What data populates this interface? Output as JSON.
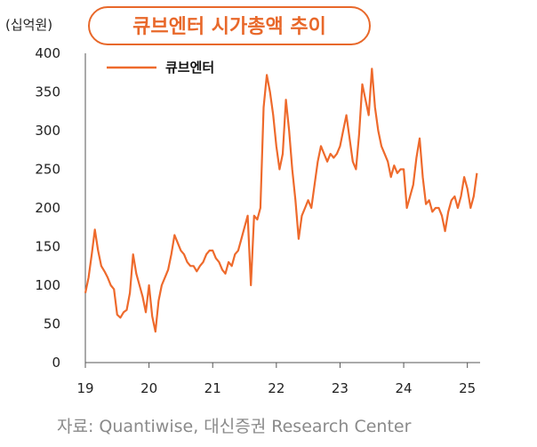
{
  "chart_title": "큐브엔터 시가총액 추이",
  "unit_label": "(십억원)",
  "source": "자료: Quantiwise, 대신증권 Research Center",
  "colors": {
    "accent": "#e8682a",
    "series": "#ee6a2c"
  },
  "chart_data": {
    "type": "line",
    "title": "큐브엔터 시가총액 추이",
    "ylabel": "(십억원)",
    "xlabel": "",
    "ylim": [
      0,
      400
    ],
    "xlim": [
      2019.0,
      2025.2
    ],
    "yticks": [
      "0",
      "50",
      "100",
      "150",
      "200",
      "250",
      "300",
      "350",
      "400"
    ],
    "xticks": [
      "19",
      "20",
      "21",
      "22",
      "23",
      "24",
      "25"
    ],
    "grid": false,
    "legend_position": "top-left",
    "series": [
      {
        "name": "큐브엔터",
        "x": [
          2019.0,
          2019.05,
          2019.1,
          2019.15,
          2019.2,
          2019.25,
          2019.3,
          2019.35,
          2019.4,
          2019.45,
          2019.5,
          2019.55,
          2019.6,
          2019.65,
          2019.7,
          2019.75,
          2019.8,
          2019.85,
          2019.9,
          2019.95,
          2020.0,
          2020.05,
          2020.1,
          2020.15,
          2020.2,
          2020.25,
          2020.3,
          2020.35,
          2020.4,
          2020.45,
          2020.5,
          2020.55,
          2020.6,
          2020.65,
          2020.7,
          2020.75,
          2020.8,
          2020.85,
          2020.9,
          2020.95,
          2021.0,
          2021.05,
          2021.1,
          2021.15,
          2021.2,
          2021.25,
          2021.3,
          2021.35,
          2021.4,
          2021.45,
          2021.5,
          2021.55,
          2021.6,
          2021.65,
          2021.7,
          2021.75,
          2021.8,
          2021.85,
          2021.9,
          2021.95,
          2022.0,
          2022.05,
          2022.1,
          2022.15,
          2022.2,
          2022.25,
          2022.3,
          2022.35,
          2022.4,
          2022.45,
          2022.5,
          2022.55,
          2022.6,
          2022.65,
          2022.7,
          2022.75,
          2022.8,
          2022.85,
          2022.9,
          2022.95,
          2023.0,
          2023.05,
          2023.1,
          2023.15,
          2023.2,
          2023.25,
          2023.3,
          2023.35,
          2023.4,
          2023.45,
          2023.5,
          2023.55,
          2023.6,
          2023.65,
          2023.7,
          2023.75,
          2023.8,
          2023.85,
          2023.9,
          2023.95,
          2024.0,
          2024.05,
          2024.1,
          2024.15,
          2024.2,
          2024.25,
          2024.3,
          2024.35,
          2024.4,
          2024.45,
          2024.5,
          2024.55,
          2024.6,
          2024.65,
          2024.7,
          2024.75,
          2024.8,
          2024.85,
          2024.9,
          2024.95,
          2025.0,
          2025.05,
          2025.1,
          2025.15
        ],
        "values": [
          90,
          110,
          140,
          172,
          145,
          125,
          118,
          110,
          100,
          95,
          62,
          58,
          65,
          68,
          90,
          140,
          115,
          100,
          85,
          65,
          100,
          60,
          40,
          80,
          100,
          110,
          120,
          140,
          165,
          155,
          145,
          140,
          130,
          125,
          125,
          118,
          125,
          130,
          140,
          145,
          145,
          135,
          130,
          120,
          115,
          130,
          125,
          140,
          145,
          160,
          175,
          190,
          100,
          190,
          185,
          200,
          330,
          372,
          350,
          320,
          280,
          250,
          270,
          340,
          300,
          250,
          210,
          160,
          190,
          200,
          210,
          200,
          230,
          260,
          280,
          270,
          260,
          270,
          265,
          270,
          280,
          300,
          320,
          290,
          260,
          250,
          295,
          360,
          340,
          320,
          380,
          330,
          300,
          280,
          270,
          260,
          240,
          255,
          245,
          250,
          250,
          200,
          215,
          230,
          265,
          290,
          240,
          205,
          210,
          195,
          200,
          200,
          190,
          170,
          195,
          210,
          215,
          200,
          215,
          240,
          225,
          200,
          215,
          245
        ]
      }
    ]
  }
}
